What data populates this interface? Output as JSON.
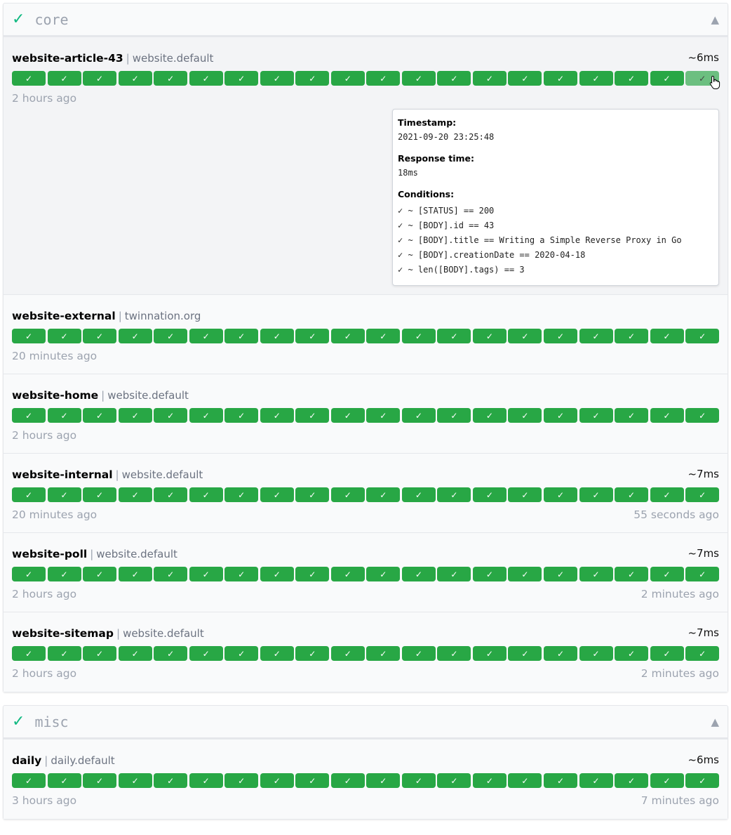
{
  "groups": [
    {
      "name": "core",
      "status_icon": "✓",
      "toggle": "▲",
      "endpoints": [
        {
          "name": "website-article-43",
          "hostname": "website.default",
          "response_time": "~6ms",
          "oldest": "2 hours ago",
          "newest": "",
          "hovered_index": 19
        },
        {
          "name": "website-external",
          "hostname": "twinnation.org",
          "response_time": "",
          "oldest": "20 minutes ago",
          "newest": ""
        },
        {
          "name": "website-home",
          "hostname": "website.default",
          "response_time": "",
          "oldest": "2 hours ago",
          "newest": ""
        },
        {
          "name": "website-internal",
          "hostname": "website.default",
          "response_time": "~7ms",
          "oldest": "20 minutes ago",
          "newest": "55 seconds ago"
        },
        {
          "name": "website-poll",
          "hostname": "website.default",
          "response_time": "~7ms",
          "oldest": "2 hours ago",
          "newest": "2 minutes ago"
        },
        {
          "name": "website-sitemap",
          "hostname": "website.default",
          "response_time": "~7ms",
          "oldest": "2 hours ago",
          "newest": "2 minutes ago"
        }
      ]
    },
    {
      "name": "misc",
      "status_icon": "✓",
      "toggle": "▲",
      "endpoints": [
        {
          "name": "daily",
          "hostname": "daily.default",
          "response_time": "~6ms",
          "oldest": "3 hours ago",
          "newest": "7 minutes ago"
        }
      ]
    }
  ],
  "result_status": [
    "success",
    "success",
    "success",
    "success",
    "success",
    "success",
    "success",
    "success",
    "success",
    "success",
    "success",
    "success",
    "success",
    "success",
    "success",
    "success",
    "success",
    "success",
    "success",
    "success"
  ],
  "result_icon": "✓",
  "tooltip": {
    "timestamp_label": "Timestamp:",
    "timestamp": "2021-09-20 23:25:48",
    "response_time_label": "Response time:",
    "response_time": "18ms",
    "conditions_label": "Conditions:",
    "conditions": [
      "✓ ~ [STATUS] == 200",
      "✓ ~ [BODY].id == 43",
      "✓ ~ [BODY].title == Writing a Simple Reverse Proxy in Go",
      "✓ ~ [BODY].creationDate == 2020-04-18",
      "✓ ~ len([BODY].tags) == 3"
    ]
  },
  "colors": {
    "success": "#28a745",
    "group_check": "#10b981"
  }
}
